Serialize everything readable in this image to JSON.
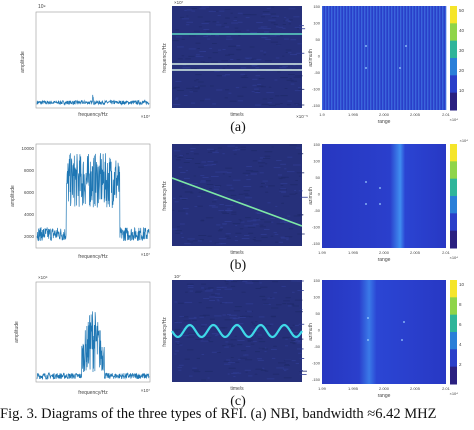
{
  "figure": {
    "caption": "Fig. 3.   Diagrams of the three types of RFI. (a) NBI, bandwidth ≈6.42 MHZ",
    "rows": [
      {
        "label": "(a)",
        "spectrum": {
          "ylabel": "amplitude",
          "xlabel": "frequency/Hz",
          "ytop_exp": "10⁹",
          "xexp": "×10⁷"
        },
        "tf": {
          "ylabel": "frequency/Hz",
          "xlabel": "time/s",
          "yexp": "×10⁷",
          "xexp": "×10⁻⁵"
        },
        "image": {
          "ylabel": "azimuth",
          "xlabel": "range",
          "xexp": "×10⁴",
          "xticks": [
            "1.9",
            "1.995",
            "2.000",
            "2.005",
            "2.01"
          ],
          "yticks": [
            "150",
            "100",
            "50",
            "0",
            "-50",
            "-100",
            "-150"
          ],
          "cbar": [
            "50",
            "40",
            "30",
            "20",
            "10"
          ]
        }
      },
      {
        "label": "(b)",
        "spectrum": {
          "ylabel": "amplitude",
          "xlabel": "frequency/Hz",
          "yticks": [
            "10000",
            "8000",
            "6000",
            "4000",
            "2000"
          ],
          "xexp": "×10⁷"
        },
        "tf": {
          "ylabel": "frequency/Hz",
          "xlabel": "time/s"
        },
        "image": {
          "ylabel": "azimuth",
          "xlabel": "range",
          "xexp": "×10⁴",
          "xticks": [
            "1.99",
            "1.995",
            "2.000",
            "2.005",
            "2.01"
          ],
          "yticks": [
            "150",
            "100",
            "50",
            "0",
            "-50",
            "-100",
            "-150"
          ],
          "cbar_exp": "×10⁴"
        }
      },
      {
        "label": "(c)",
        "spectrum": {
          "ylabel": "amplitude",
          "xlabel": "frequency/Hz",
          "ytop_exp": "×10⁴",
          "xexp": "×10⁷"
        },
        "tf": {
          "ylabel": "frequency/Hz",
          "xlabel": "time/s",
          "yexp": "10⁷"
        },
        "image": {
          "ylabel": "azimuth",
          "xlabel": "range",
          "xexp": "×10⁴",
          "xticks": [
            "1.99",
            "1.995",
            "2.000",
            "2.005",
            "2.01"
          ],
          "yticks": [
            "150",
            "100",
            "50",
            "0",
            "-50",
            "-100",
            "-150"
          ],
          "cbar": [
            "10",
            "8",
            "6",
            "4",
            "2"
          ]
        }
      }
    ]
  },
  "colors": {
    "signal": "#1f77b4",
    "tf_bg": "#26307a",
    "image_bg": "#2a3fc9",
    "stripe": "#3f8ef0"
  }
}
